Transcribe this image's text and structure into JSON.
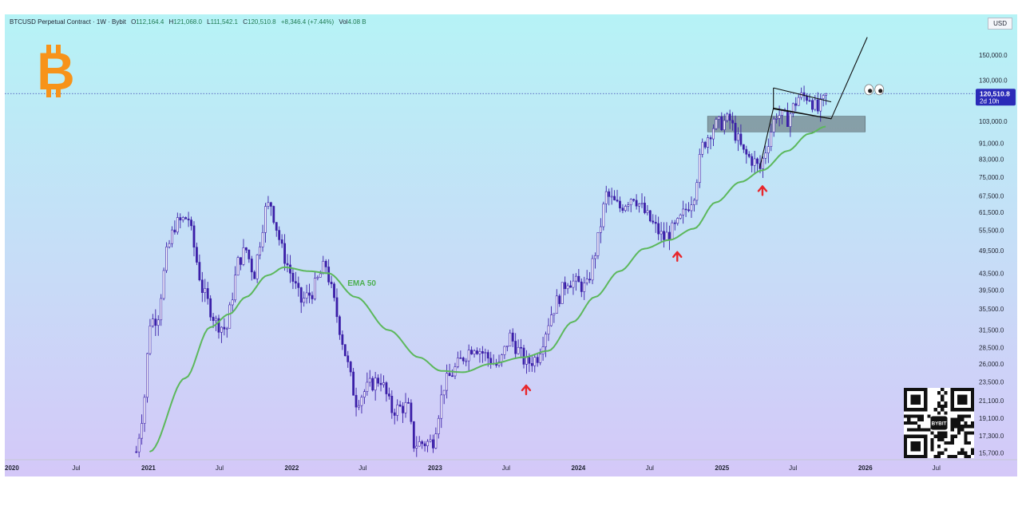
{
  "header": {
    "symbol": "BTCUSD Perpetual Contract · 1W · Bybit",
    "open_label": "O",
    "open": "112,164.4",
    "high_label": "H",
    "high": "121,068.0",
    "low_label": "L",
    "low": "111,542.1",
    "close_label": "C",
    "close": "120,510.8",
    "change": "+8,346.4 (+7.44%)",
    "vol_label": "Vol",
    "vol": "4.08 B"
  },
  "price_scale": {
    "currency": "USD",
    "last_price": "120,510.8",
    "countdown": "2d 10h",
    "last_price_color": "#2b2bb8"
  },
  "chart_data": {
    "type": "candlestick",
    "scale": "log",
    "ylim": [
      15100,
      171000
    ],
    "x_domain": [
      "2020-01-01",
      "2026-10-01"
    ],
    "x_ticks": [
      {
        "d": "2020-01-01",
        "label": "2020",
        "major": true
      },
      {
        "d": "2020-07-01",
        "label": "Jul",
        "major": false
      },
      {
        "d": "2021-01-01",
        "label": "2021",
        "major": true
      },
      {
        "d": "2021-07-01",
        "label": "Jul",
        "major": false
      },
      {
        "d": "2022-01-01",
        "label": "2022",
        "major": true
      },
      {
        "d": "2022-07-01",
        "label": "Jul",
        "major": false
      },
      {
        "d": "2023-01-01",
        "label": "2023",
        "major": true
      },
      {
        "d": "2023-07-01",
        "label": "Jul",
        "major": false
      },
      {
        "d": "2024-01-01",
        "label": "2024",
        "major": true
      },
      {
        "d": "2024-07-01",
        "label": "Jul",
        "major": false
      },
      {
        "d": "2025-01-01",
        "label": "2025",
        "major": true
      },
      {
        "d": "2025-07-01",
        "label": "Jul",
        "major": false
      },
      {
        "d": "2026-01-01",
        "label": "2026",
        "major": true
      },
      {
        "d": "2026-07-01",
        "label": "Jul",
        "major": false
      }
    ],
    "y_ticks": [
      {
        "v": 150000,
        "label": "150,000.0"
      },
      {
        "v": 130000,
        "label": "130,000.0"
      },
      {
        "v": 103000,
        "label": "103,000.0"
      },
      {
        "v": 91000,
        "label": "91,000.0"
      },
      {
        "v": 83000,
        "label": "83,000.0"
      },
      {
        "v": 75000,
        "label": "75,000.0"
      },
      {
        "v": 67500,
        "label": "67,500.0"
      },
      {
        "v": 61500,
        "label": "61,500.0"
      },
      {
        "v": 55500,
        "label": "55,500.0"
      },
      {
        "v": 49500,
        "label": "49,500.0"
      },
      {
        "v": 43500,
        "label": "43,500.0"
      },
      {
        "v": 39500,
        "label": "39,500.0"
      },
      {
        "v": 35500,
        "label": "35,500.0"
      },
      {
        "v": 31500,
        "label": "31,500.0"
      },
      {
        "v": 28500,
        "label": "28,500.0"
      },
      {
        "v": 26000,
        "label": "26,000.0"
      },
      {
        "v": 23500,
        "label": "23,500.0"
      },
      {
        "v": 21100,
        "label": "21,100.0"
      },
      {
        "v": 19100,
        "label": "19,100.0"
      },
      {
        "v": 17300,
        "label": "17,300.0"
      },
      {
        "v": 15700,
        "label": "15,700.0"
      }
    ],
    "last_price_value": 120510.8,
    "price_anchors": [
      [
        "2020-12-01",
        15800
      ],
      [
        "2020-12-21",
        21000
      ],
      [
        "2021-01-04",
        33000
      ],
      [
        "2021-01-25",
        34000
      ],
      [
        "2021-02-15",
        48000
      ],
      [
        "2021-03-08",
        57000
      ],
      [
        "2021-04-12",
        60000
      ],
      [
        "2021-05-17",
        40000
      ],
      [
        "2021-06-21",
        33000
      ],
      [
        "2021-07-19",
        31500
      ],
      [
        "2021-08-16",
        46000
      ],
      [
        "2021-09-06",
        50000
      ],
      [
        "2021-09-27",
        43000
      ],
      [
        "2021-10-25",
        62000
      ],
      [
        "2021-11-08",
        65000
      ],
      [
        "2021-12-06",
        50000
      ],
      [
        "2022-01-24",
        37000
      ],
      [
        "2022-02-21",
        39000
      ],
      [
        "2022-03-28",
        46000
      ],
      [
        "2022-05-09",
        30000
      ],
      [
        "2022-06-13",
        21000
      ],
      [
        "2022-07-18",
        23000
      ],
      [
        "2022-08-15",
        24000
      ],
      [
        "2022-09-12",
        20000
      ],
      [
        "2022-10-24",
        20500
      ],
      [
        "2022-11-07",
        16500
      ],
      [
        "2022-12-26",
        16700
      ],
      [
        "2023-01-23",
        23000
      ],
      [
        "2023-03-13",
        27000
      ],
      [
        "2023-04-10",
        29000
      ],
      [
        "2023-06-12",
        25500
      ],
      [
        "2023-07-10",
        30500
      ],
      [
        "2023-08-21",
        26000
      ],
      [
        "2023-09-18",
        27000
      ],
      [
        "2023-10-23",
        34500
      ],
      [
        "2023-12-04",
        42000
      ],
      [
        "2024-01-22",
        40000
      ],
      [
        "2024-02-19",
        52000
      ],
      [
        "2024-03-11",
        68000
      ],
      [
        "2024-04-15",
        63000
      ],
      [
        "2024-05-20",
        68000
      ],
      [
        "2024-06-24",
        60000
      ],
      [
        "2024-08-05",
        53000
      ],
      [
        "2024-09-09",
        57000
      ],
      [
        "2024-10-21",
        68000
      ],
      [
        "2024-11-11",
        89000
      ],
      [
        "2024-12-09",
        100000
      ],
      [
        "2025-01-20",
        104000
      ],
      [
        "2025-02-24",
        86000
      ],
      [
        "2025-03-24",
        82000
      ],
      [
        "2025-04-07",
        78000
      ],
      [
        "2025-05-05",
        97000
      ],
      [
        "2025-05-19",
        108000
      ],
      [
        "2025-06-16",
        104000
      ],
      [
        "2025-07-14",
        118000
      ],
      [
        "2025-08-11",
        119000
      ],
      [
        "2025-09-01",
        109000
      ],
      [
        "2025-09-29",
        120510.8
      ]
    ],
    "ema_50": [
      [
        "2021-01-04",
        15800
      ],
      [
        "2021-04-05",
        24000
      ],
      [
        "2021-06-07",
        32000
      ],
      [
        "2021-07-26",
        34500
      ],
      [
        "2021-09-06",
        38000
      ],
      [
        "2021-11-01",
        43000
      ],
      [
        "2021-12-13",
        45000
      ],
      [
        "2022-02-14",
        44000
      ],
      [
        "2022-04-04",
        43500
      ],
      [
        "2022-06-13",
        38000
      ],
      [
        "2022-09-05",
        31500
      ],
      [
        "2022-11-21",
        27000
      ],
      [
        "2023-01-16",
        25000
      ],
      [
        "2023-03-13",
        24800
      ],
      [
        "2023-05-22",
        26000
      ],
      [
        "2023-08-14",
        27000
      ],
      [
        "2023-10-16",
        28000
      ],
      [
        "2023-12-18",
        33000
      ],
      [
        "2024-02-12",
        38000
      ],
      [
        "2024-04-15",
        44000
      ],
      [
        "2024-06-17",
        50000
      ],
      [
        "2024-08-19",
        52500
      ],
      [
        "2024-10-21",
        56000
      ],
      [
        "2024-12-16",
        65000
      ],
      [
        "2025-02-17",
        73000
      ],
      [
        "2025-04-14",
        78000
      ],
      [
        "2025-06-16",
        87000
      ],
      [
        "2025-08-11",
        96000
      ],
      [
        "2025-09-22",
        100000
      ]
    ],
    "ema_label": "EMA 50",
    "ema_color": "#5cb85c",
    "candle_color": "#3b1fa8",
    "support_zone": {
      "from": "2024-11-25",
      "to": "2026-01-01",
      "low": 97000,
      "high": 106000,
      "color": "#6f7f86"
    },
    "channel": {
      "upper": [
        [
          "2025-05-12",
          124500
        ],
        [
          "2025-10-06",
          115000
        ]
      ],
      "lower": [
        [
          "2025-05-12",
          110500
        ],
        [
          "2025-10-06",
          104500
        ]
      ],
      "side": [
        [
          "2025-05-12",
          110500
        ],
        [
          "2025-05-12",
          124500
        ]
      ]
    },
    "projection": [
      [
        "2025-04-07",
        79000
      ],
      [
        "2025-05-12",
        111000
      ],
      [
        "2025-10-06",
        104500
      ],
      [
        "2026-01-06",
        166000
      ]
    ],
    "arrows": [
      {
        "d": "2023-08-21",
        "v": 22800
      },
      {
        "d": "2024-09-09",
        "v": 48600
      },
      {
        "d": "2025-04-14",
        "v": 70600
      }
    ],
    "eyes": {
      "d": "2026-01-06",
      "v": 121000
    },
    "arrow_color": "#e8262b"
  },
  "branding": {
    "logo_letter": "B",
    "logo_color": "#f7931a",
    "qr_center": "BYBIT"
  }
}
